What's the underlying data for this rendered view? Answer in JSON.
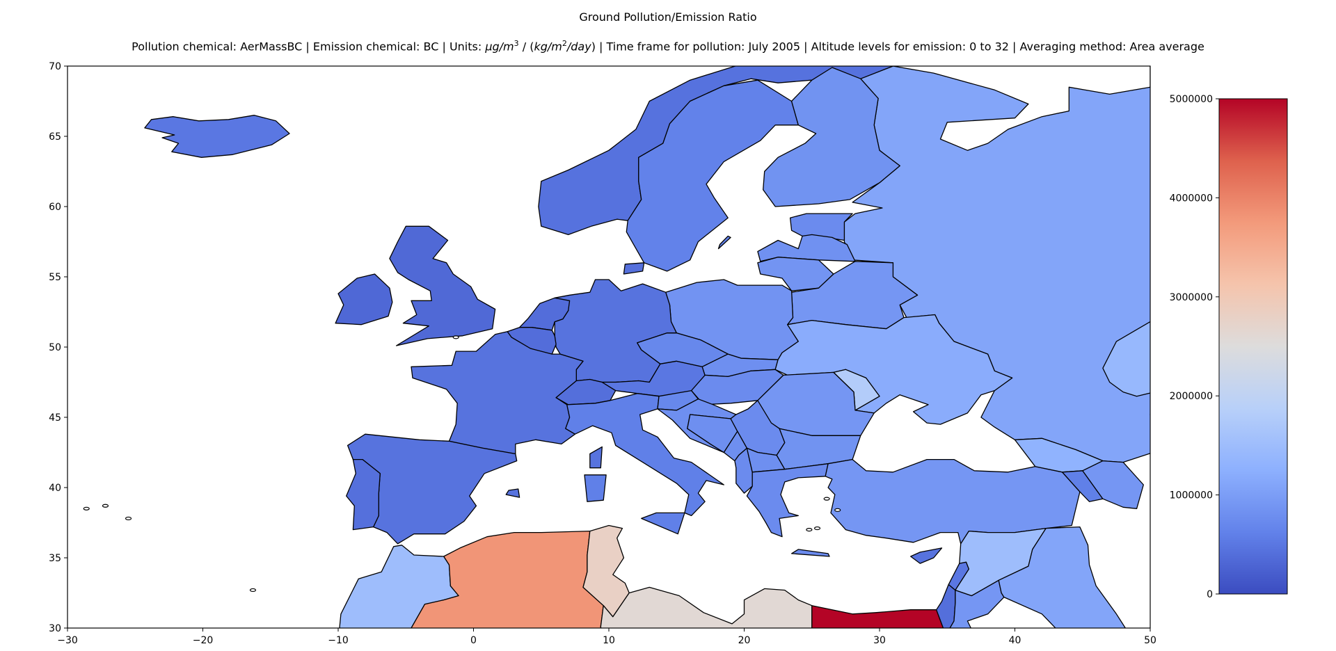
{
  "title": "Ground Pollution/Emission Ratio",
  "subtitle": {
    "prefix": "Pollution chemical: AerMassBC | Emission chemical: BC | Units: ",
    "unit_numerator": "μg/m",
    "unit_numerator_sup": "3",
    "unit_mid": " / (",
    "unit_denominator": "kg/m",
    "unit_denominator_sup": "2",
    "unit_denominator_end": "/day",
    "unit_close": ")",
    "suffix": " | Time frame for pollution: July 2005 | Altitude levels for emission: 0 to 32 | Averaging method: Area average"
  },
  "chart_data": {
    "type": "choropleth",
    "projection": "PlateCarree",
    "xlim": [
      -30,
      50
    ],
    "ylim": [
      30,
      70
    ],
    "x_ticks": [
      -30,
      -20,
      -10,
      0,
      10,
      20,
      30,
      40,
      50
    ],
    "y_ticks": [
      30,
      35,
      40,
      45,
      50,
      55,
      60,
      65,
      70
    ],
    "colormap": "coolwarm",
    "color_range": [
      0,
      5000000
    ],
    "colorbar_ticks": [
      0,
      1000000,
      2000000,
      3000000,
      4000000,
      5000000
    ],
    "colorbar_tick_labels": [
      "0",
      "1000000",
      "2000000",
      "3000000",
      "4000000",
      "5000000"
    ],
    "regions": [
      {
        "name": "Iceland",
        "value": 500000
      },
      {
        "name": "Ireland",
        "value": 320000
      },
      {
        "name": "United Kingdom",
        "value": 330000
      },
      {
        "name": "Norway",
        "value": 440000
      },
      {
        "name": "Sweden",
        "value": 620000
      },
      {
        "name": "Finland",
        "value": 850000
      },
      {
        "name": "Denmark",
        "value": 420000
      },
      {
        "name": "Estonia",
        "value": 750000
      },
      {
        "name": "Latvia",
        "value": 830000
      },
      {
        "name": "Lithuania",
        "value": 870000
      },
      {
        "name": "Belarus",
        "value": 900000
      },
      {
        "name": "Russia",
        "value": 1100000
      },
      {
        "name": "Poland",
        "value": 860000
      },
      {
        "name": "Germany",
        "value": 450000
      },
      {
        "name": "Netherlands",
        "value": 380000
      },
      {
        "name": "Belgium",
        "value": 380000
      },
      {
        "name": "France",
        "value": 450000
      },
      {
        "name": "Switzerland",
        "value": 400000
      },
      {
        "name": "Austria",
        "value": 500000
      },
      {
        "name": "Czechia",
        "value": 700000
      },
      {
        "name": "Slovakia",
        "value": 800000
      },
      {
        "name": "Hungary",
        "value": 750000
      },
      {
        "name": "Ukraine",
        "value": 1200000
      },
      {
        "name": "Moldova",
        "value": 1800000
      },
      {
        "name": "Romania",
        "value": 900000
      },
      {
        "name": "Italy",
        "value": 600000
      },
      {
        "name": "Slovenia",
        "value": 700000
      },
      {
        "name": "Croatia",
        "value": 800000
      },
      {
        "name": "Bosnia and Herzegovina",
        "value": 800000
      },
      {
        "name": "Serbia",
        "value": 750000
      },
      {
        "name": "Montenegro",
        "value": 800000
      },
      {
        "name": "Albania",
        "value": 750000
      },
      {
        "name": "North Macedonia",
        "value": 800000
      },
      {
        "name": "Bulgaria",
        "value": 850000
      },
      {
        "name": "Greece",
        "value": 750000
      },
      {
        "name": "Turkey",
        "value": 900000
      },
      {
        "name": "Spain",
        "value": 450000
      },
      {
        "name": "Portugal",
        "value": 420000
      },
      {
        "name": "Morocco",
        "value": 1500000
      },
      {
        "name": "Algeria",
        "value": 3800000
      },
      {
        "name": "Tunisia",
        "value": 2800000
      },
      {
        "name": "Libya",
        "value": 2600000
      },
      {
        "name": "Egypt",
        "value": 5000000
      },
      {
        "name": "Cyprus",
        "value": 450000
      },
      {
        "name": "Syria",
        "value": 1500000
      },
      {
        "name": "Lebanon",
        "value": 500000
      },
      {
        "name": "Israel",
        "value": 400000
      },
      {
        "name": "Jordan",
        "value": 900000
      },
      {
        "name": "Iraq",
        "value": 1100000
      },
      {
        "name": "Georgia",
        "value": 1300000
      },
      {
        "name": "Armenia",
        "value": 600000
      },
      {
        "name": "Azerbaijan",
        "value": 900000
      },
      {
        "name": "Kazakhstan",
        "value": 1400000
      }
    ]
  }
}
